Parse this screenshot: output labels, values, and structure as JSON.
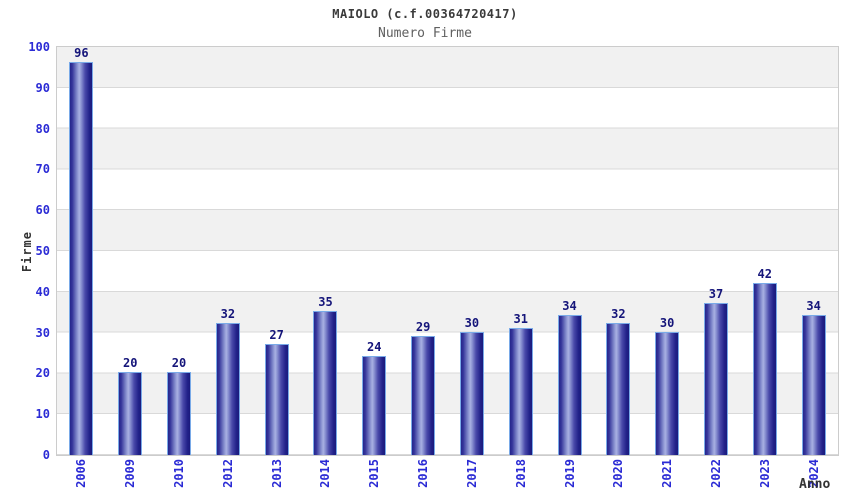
{
  "chart_data": {
    "type": "bar",
    "title": "MAIOLO (c.f.00364720417)",
    "subtitle": "Numero Firme",
    "xlabel": "Anno",
    "ylabel": "Firme",
    "categories": [
      "2006",
      "2009",
      "2010",
      "2012",
      "2013",
      "2014",
      "2015",
      "2016",
      "2017",
      "2018",
      "2019",
      "2020",
      "2021",
      "2022",
      "2023",
      "2024"
    ],
    "values": [
      96,
      20,
      20,
      32,
      27,
      35,
      24,
      29,
      30,
      31,
      34,
      32,
      30,
      37,
      42,
      34
    ],
    "ylim": [
      0,
      100
    ],
    "yticks": [
      0,
      10,
      20,
      30,
      40,
      50,
      60,
      70,
      80,
      90,
      100
    ],
    "legend_position": "none",
    "grid": "horizontal-bands",
    "colors": {
      "bar_dark": "#1b1b7c",
      "bar_highlight": "#a8b0e2",
      "bar_outline": "#79aae8",
      "value_label": "#15157a",
      "tick_label": "#2b2bd5",
      "title": "#3a3a3a",
      "subtitle": "#606060",
      "axis_label": "#333333",
      "band_gray": "#f1f1f1",
      "band_white": "#ffffff",
      "grid_line": "#d9d9d9",
      "plot_border": "#cccccc"
    }
  }
}
